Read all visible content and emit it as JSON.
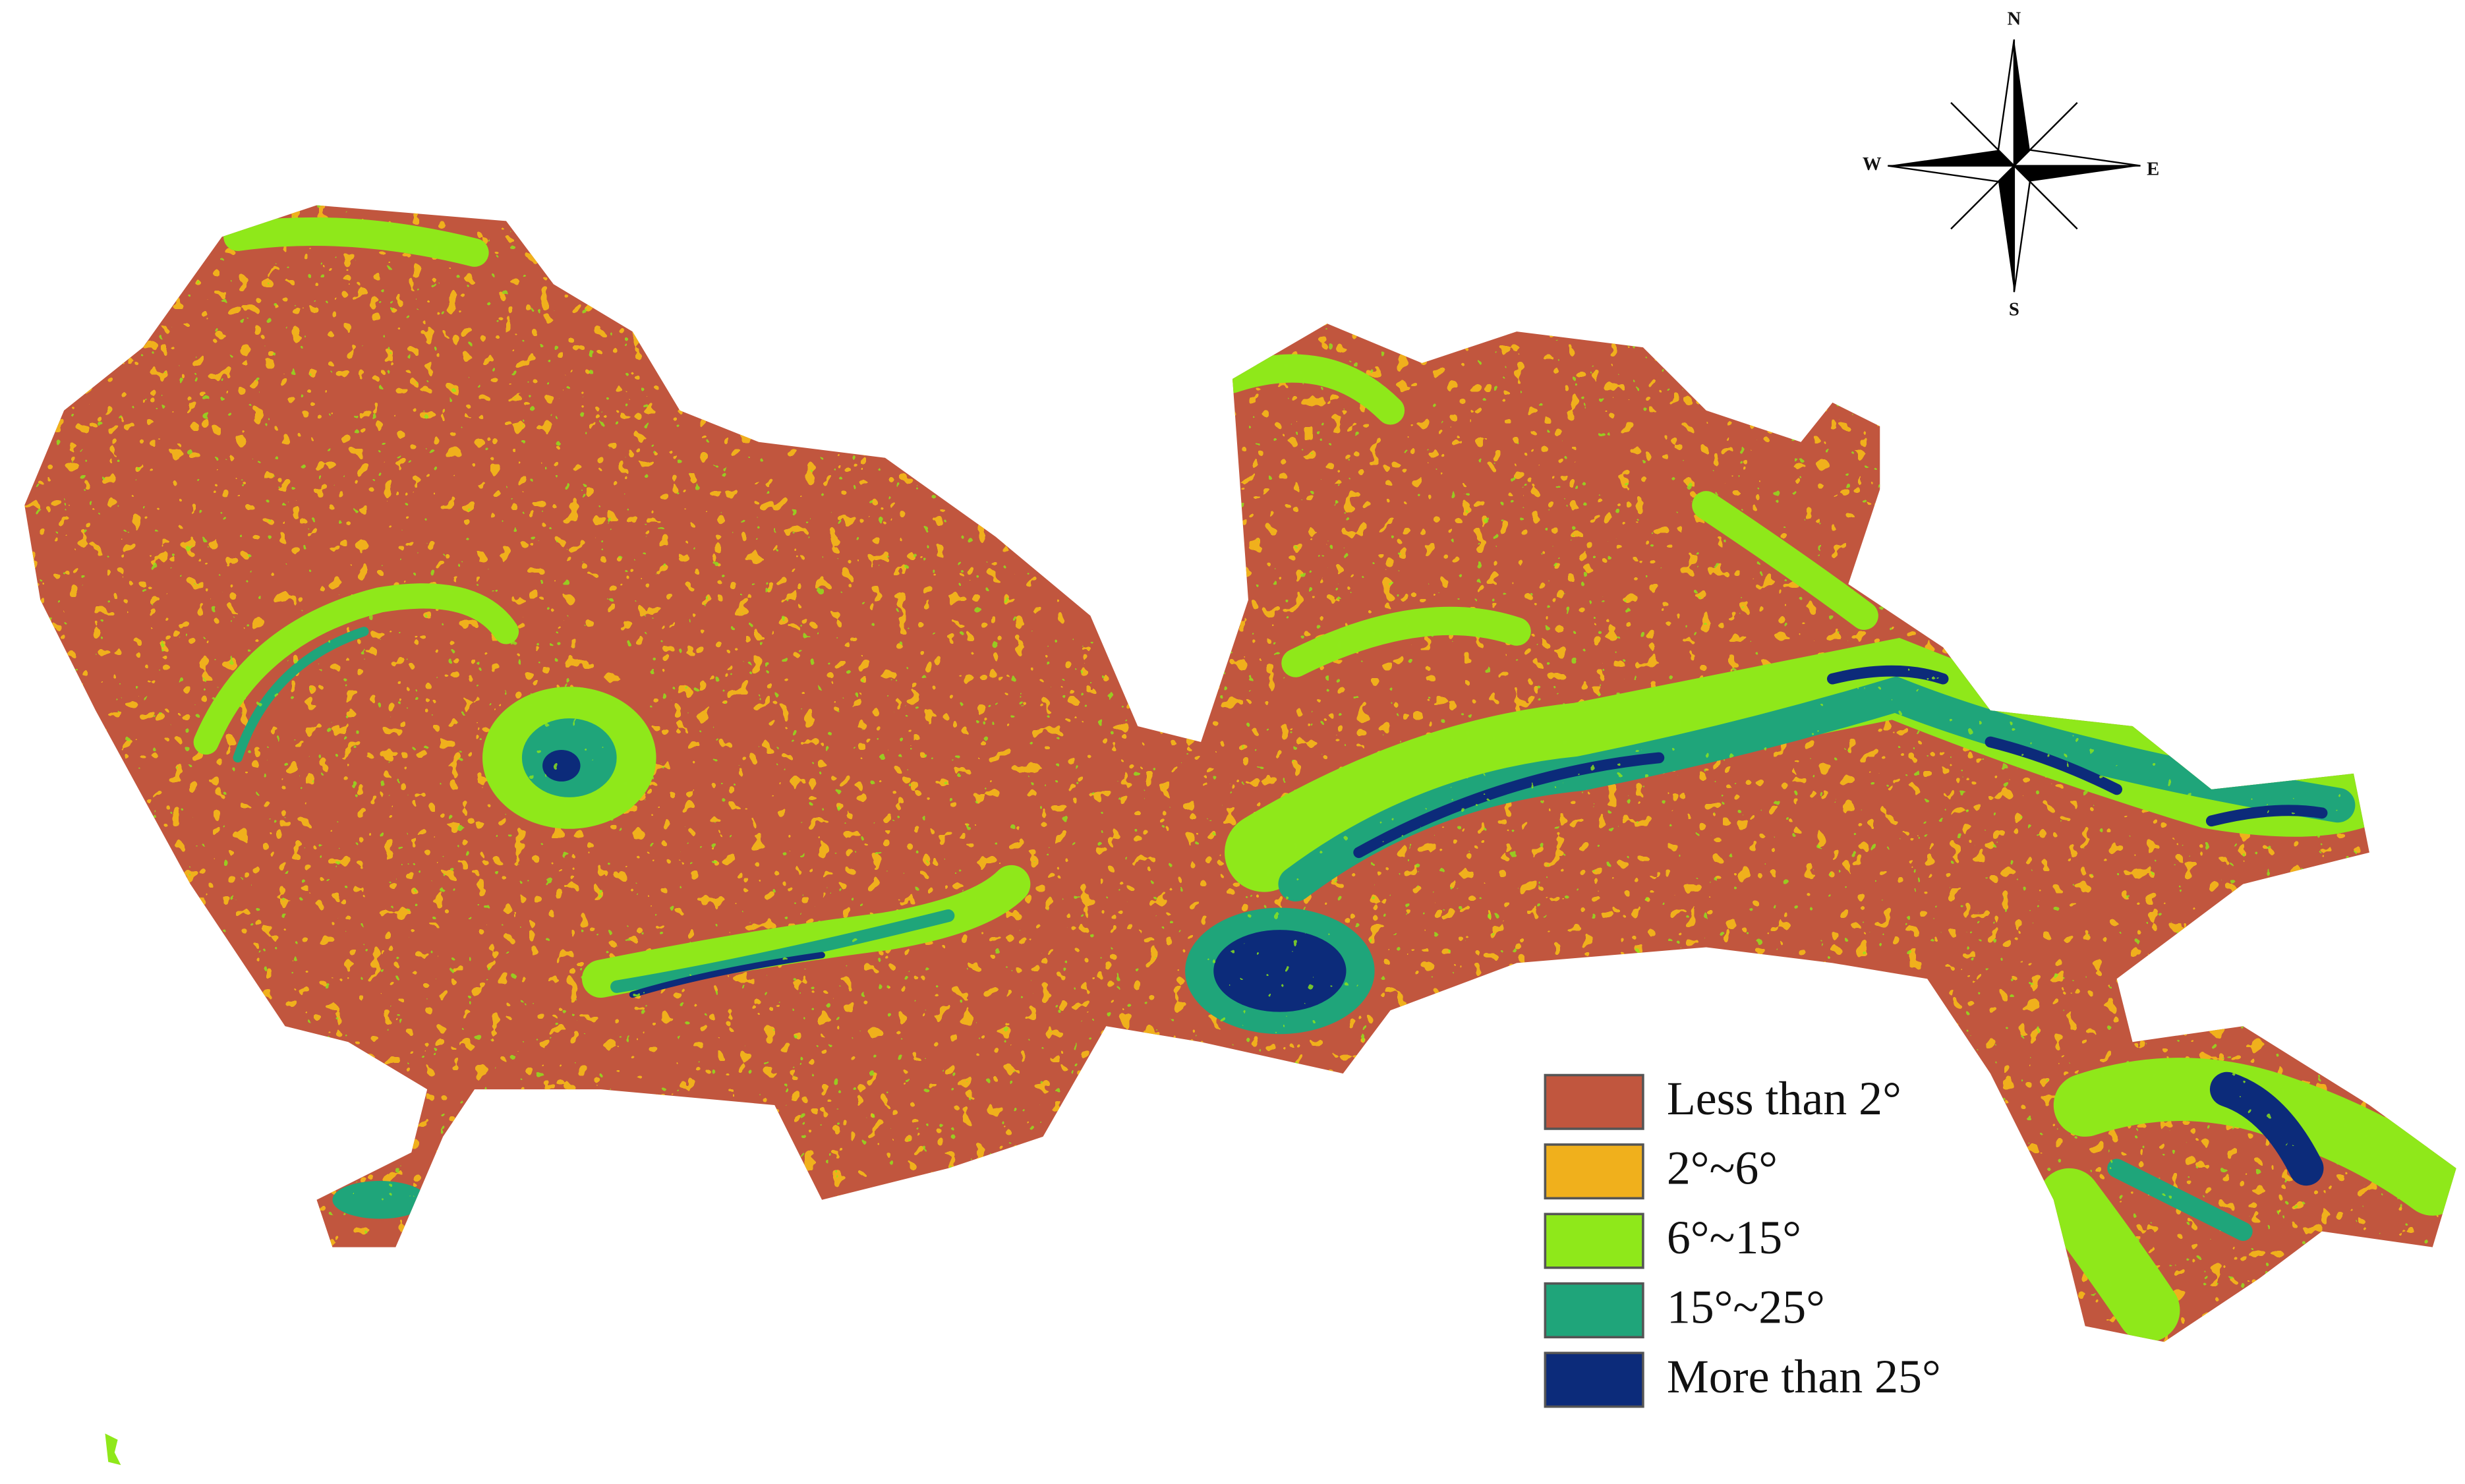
{
  "compass": {
    "north": "N",
    "south": "S",
    "west": "W",
    "east": "E"
  },
  "legend": {
    "items": [
      {
        "label": "Less than 2°",
        "color": "#c1563e"
      },
      {
        "label": "2°~6°",
        "color": "#f0b01c"
      },
      {
        "label": "6°~15°",
        "color": "#8fe81a"
      },
      {
        "label": "15°~25°",
        "color": "#1fa57a"
      },
      {
        "label": "More than 25°",
        "color": "#0c2b7a"
      }
    ]
  }
}
